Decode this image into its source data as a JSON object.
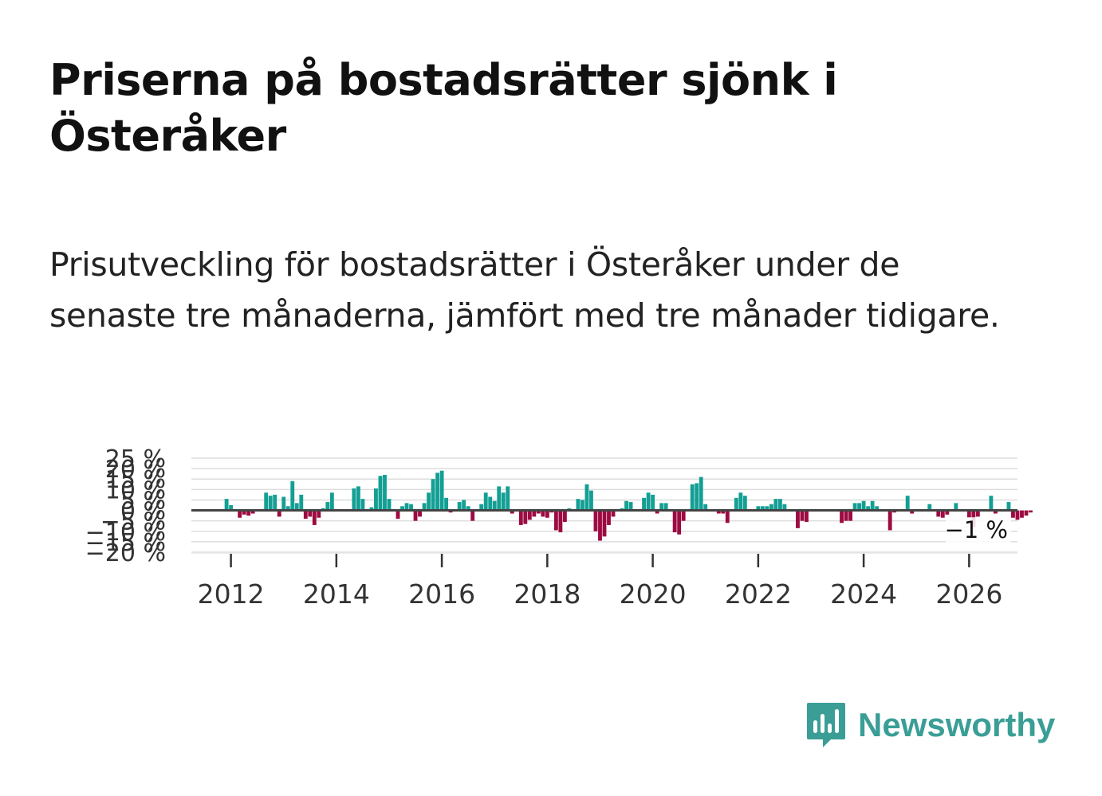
{
  "title": "Priserna på bostadsrätter sjönk i Österåker",
  "subtitle": "Prisutveckling för bostadsrätter i Österåker under de senaste tre månaderna, jämfört med tre månader tidigare.",
  "brand": {
    "name": "Newsworthy",
    "color": "#3a9e96"
  },
  "colors": {
    "positive": "#139f94",
    "negative": "#9c0b42",
    "zero_line": "#444444",
    "grid": "#dddddd"
  },
  "chart_data": {
    "type": "bar",
    "title": "",
    "xlabel": "",
    "ylabel": "",
    "ylim": [
      -20,
      25
    ],
    "yticks": [
      25,
      20,
      15,
      10,
      5,
      0,
      -5,
      -10,
      -15,
      -20
    ],
    "ytick_labels": [
      "25 %",
      "20 %",
      "15 %",
      "10 %",
      "5 %",
      "0 %",
      "−5 %",
      "−10 %",
      "−15 %",
      "−20 %"
    ],
    "xticks": [
      2012,
      2014,
      2016,
      2018,
      2020,
      2022,
      2024,
      2026
    ],
    "xtick_labels": [
      "2012",
      "2014",
      "2016",
      "2018",
      "2020",
      "2022",
      "2024",
      "2026"
    ],
    "x_start": 2011.25,
    "x_end": 2026.917,
    "series_start_year": 2011.917,
    "month_step": 0.08333,
    "last_value_label": "−1 %",
    "values": [
      5.5,
      2.5,
      0,
      -3.5,
      -2,
      -2.5,
      -1.5,
      0,
      0,
      8.5,
      7,
      7.5,
      -3,
      6.5,
      2,
      14,
      3.5,
      7.5,
      -4,
      -3,
      -7,
      -3.5,
      1,
      4,
      8.5,
      0,
      0,
      0,
      0,
      10.5,
      11.5,
      5.5,
      0,
      1.5,
      10.5,
      16.5,
      17,
      5.5,
      0,
      -4,
      2,
      3.5,
      3,
      -5,
      -3,
      3.5,
      8.5,
      15,
      18,
      19,
      6,
      -1,
      0,
      4,
      5,
      2,
      -5,
      0,
      3,
      8.5,
      6.5,
      4.5,
      11.5,
      8.5,
      11.5,
      -1.5,
      0,
      -7,
      -6.5,
      -4.5,
      -3,
      -1.5,
      -3,
      -3.5,
      -1,
      -9.5,
      -10.5,
      -5.5,
      1,
      0.5,
      5.5,
      5,
      12.5,
      9.5,
      -10,
      -14.5,
      -12.5,
      -7,
      -3,
      0,
      1,
      4.5,
      4,
      0,
      0,
      6,
      8.5,
      7.5,
      -1.5,
      3.5,
      3.5,
      0,
      -10.5,
      -11.5,
      -5,
      0,
      12.5,
      13,
      16,
      3,
      0,
      0,
      -1.5,
      -1.5,
      -6,
      0,
      6,
      8.5,
      7,
      0.5,
      0,
      2,
      2,
      2,
      3,
      5.5,
      5.5,
      3,
      0,
      0,
      -8.5,
      -5,
      -5.5,
      0,
      0,
      0,
      0,
      0.5,
      0,
      0,
      -6,
      -5,
      -5,
      3.5,
      3.5,
      4.5,
      2,
      4.5,
      2,
      0,
      0,
      -9.5,
      -1,
      0,
      0,
      7,
      -1.5,
      0,
      0,
      0,
      3,
      0,
      -3,
      -3.5,
      -2,
      0,
      3.5,
      0,
      0,
      -3.5,
      -8,
      -3,
      0.5,
      0,
      7,
      -1.5,
      0,
      0,
      4,
      -3.5,
      -4.5,
      -3.5,
      -2.5,
      -1
    ]
  }
}
